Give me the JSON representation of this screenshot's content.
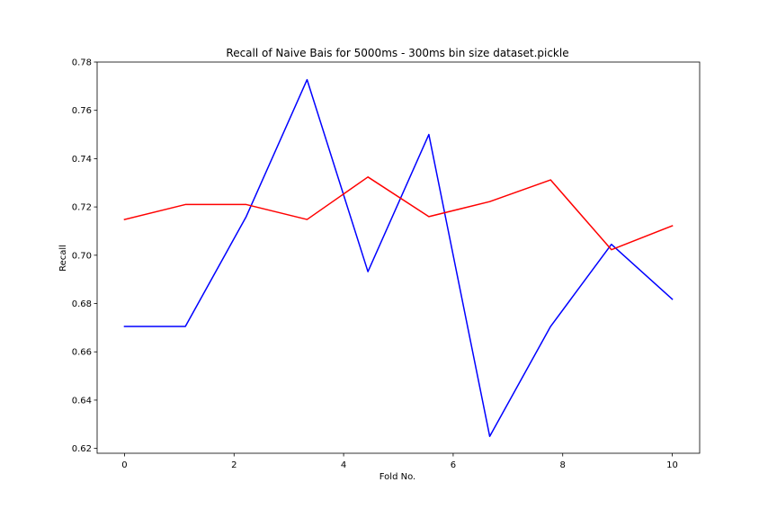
{
  "chart_data": {
    "type": "line",
    "title": "Recall of Naive Bais for 5000ms - 300ms bin size dataset.pickle",
    "xlabel": "Fold No.",
    "ylabel": "Recall",
    "xlim": [
      -0.5,
      10.5
    ],
    "ylim": [
      0.618,
      0.78
    ],
    "xticks": [
      0,
      2,
      4,
      6,
      8,
      10
    ],
    "xtick_labels": [
      "0",
      "2",
      "4",
      "6",
      "8",
      "10"
    ],
    "yticks": [
      0.62,
      0.64,
      0.66,
      0.68,
      0.7,
      0.72,
      0.74,
      0.76,
      0.78
    ],
    "ytick_labels": [
      "0.62",
      "0.64",
      "0.66",
      "0.68",
      "0.70",
      "0.72",
      "0.74",
      "0.76",
      "0.78"
    ],
    "grid": false,
    "legend": "none",
    "x": [
      0,
      1.111,
      2.222,
      3.333,
      4.444,
      5.556,
      6.667,
      7.778,
      8.889,
      10
    ],
    "series": [
      {
        "color": "#0000ff",
        "values": [
          0.6705,
          0.6705,
          0.716,
          0.7727,
          0.6932,
          0.75,
          0.625,
          0.6705,
          0.7045,
          0.6818
        ]
      },
      {
        "color": "#ff0000",
        "values": [
          0.7148,
          0.721,
          0.721,
          0.7148,
          0.7324,
          0.716,
          0.7222,
          0.7312,
          0.7023,
          0.7122
        ]
      }
    ]
  }
}
